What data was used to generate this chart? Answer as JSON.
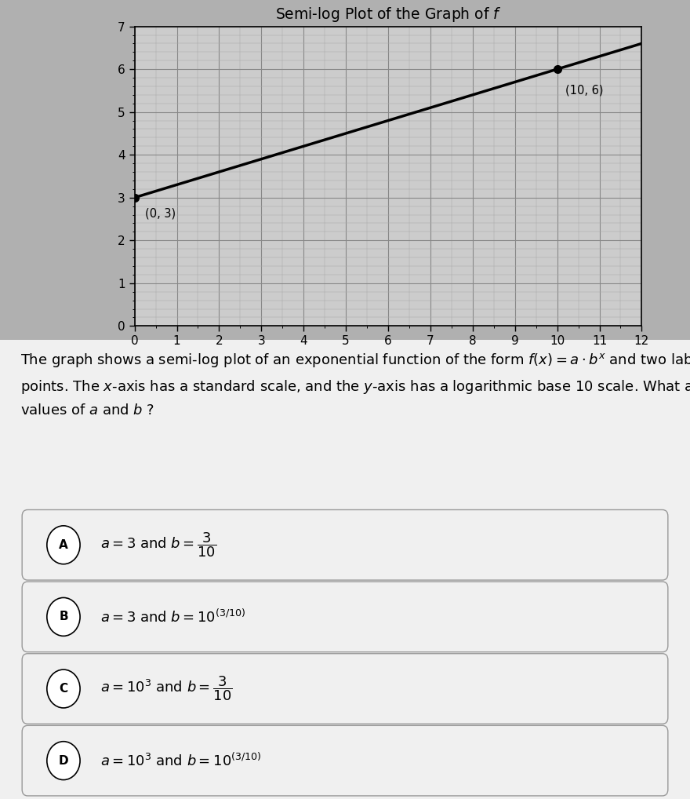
{
  "title": "Semi-log Plot of the Graph of $f$",
  "point1": [
    0,
    3
  ],
  "point2": [
    10,
    6
  ],
  "point1_label": "(0, 3)",
  "point2_label": "(10, 6)",
  "xlim": [
    0,
    12
  ],
  "ylim": [
    0,
    7
  ],
  "xticks": [
    0,
    1,
    2,
    3,
    4,
    5,
    6,
    7,
    8,
    9,
    10,
    11,
    12
  ],
  "yticks": [
    0,
    1,
    2,
    3,
    4,
    5,
    6,
    7
  ],
  "line_color": "#000000",
  "point_color": "#000000",
  "grid_major_color": "#888888",
  "grid_minor_color": "#aaaaaa",
  "plot_bg_color": "#cccccc",
  "fig_bg_color": "#b0b0b0",
  "lower_bg_color": "#f0f0f0",
  "choice_box_color": "#f0f0f0",
  "choice_border_color": "#999999",
  "x_minor_per_major": 1,
  "y_minor_per_major": 5,
  "description_line1": "The graph shows a semi-log plot of an exponential function of the form $f(x) = a \\cdot b^x$ and two labeled",
  "description_line2": "points. The $x$-axis has a standard scale, and the $y$-axis has a logarithmic base 10 scale. What are the",
  "description_line3": "values of $a$ and $b$ ?",
  "choice_labels": [
    "A",
    "B",
    "C",
    "D"
  ],
  "choice_A": "$a = 3$ and $b = \\dfrac{3}{10}$",
  "choice_B": "$a = 3$ and $b = 10^{(3/10)}$",
  "choice_C": "$a = 10^3$ and $b = \\dfrac{3}{10}$",
  "choice_D": "$a = 10^3$ and $b = 10^{(3/10)}$"
}
